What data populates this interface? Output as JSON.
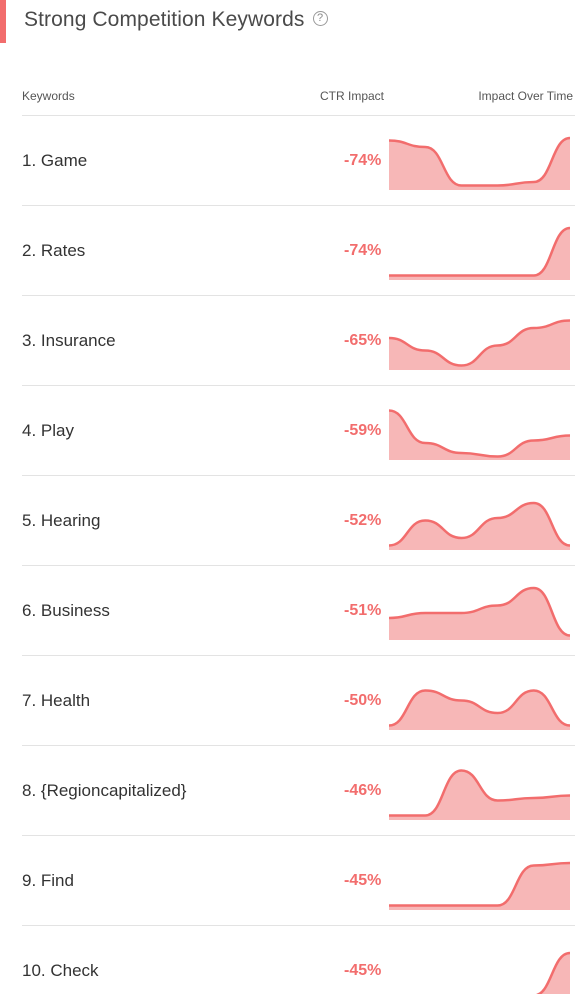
{
  "header": {
    "title": "Strong Competition Keywords",
    "help_icon": "question-circle-icon"
  },
  "columns": {
    "keyword": "Keywords",
    "ctr": "CTR Impact",
    "time": "Impact Over Time"
  },
  "colors": {
    "accent": "#f26d6d",
    "fill": "#f7b7b7"
  },
  "keywords": [
    {
      "label": "1. Game",
      "ctr": "-74%",
      "trend": [
        0.95,
        0.82,
        0.05,
        0.05,
        0.12,
        1.0
      ]
    },
    {
      "label": "2. Rates",
      "ctr": "-74%",
      "trend": [
        0.05,
        0.05,
        0.05,
        0.05,
        0.05,
        1.0
      ]
    },
    {
      "label": "3. Insurance",
      "ctr": "-65%",
      "trend": [
        0.6,
        0.35,
        0.05,
        0.45,
        0.8,
        0.95
      ]
    },
    {
      "label": "4. Play",
      "ctr": "-59%",
      "trend": [
        0.95,
        0.3,
        0.1,
        0.03,
        0.35,
        0.45
      ]
    },
    {
      "label": "5. Hearing",
      "ctr": "-52%",
      "trend": [
        0.05,
        0.55,
        0.2,
        0.6,
        0.9,
        0.05
      ]
    },
    {
      "label": "6. Business",
      "ctr": "-51%",
      "trend": [
        0.4,
        0.5,
        0.5,
        0.65,
        1.0,
        0.05
      ]
    },
    {
      "label": "7. Health",
      "ctr": "-50%",
      "trend": [
        0.05,
        0.75,
        0.55,
        0.3,
        0.75,
        0.05
      ]
    },
    {
      "label": "8. {Regioncapitalized}",
      "ctr": "-46%",
      "trend": [
        0.05,
        0.05,
        0.95,
        0.35,
        0.4,
        0.45
      ]
    },
    {
      "label": "9. Find",
      "ctr": "-45%",
      "trend": [
        0.05,
        0.05,
        0.05,
        0.05,
        0.85,
        0.9
      ]
    },
    {
      "label": "10. Check",
      "ctr": "-45%",
      "trend": [
        0.05,
        0.05,
        0.05,
        0.05,
        0.05,
        0.9
      ]
    }
  ]
}
